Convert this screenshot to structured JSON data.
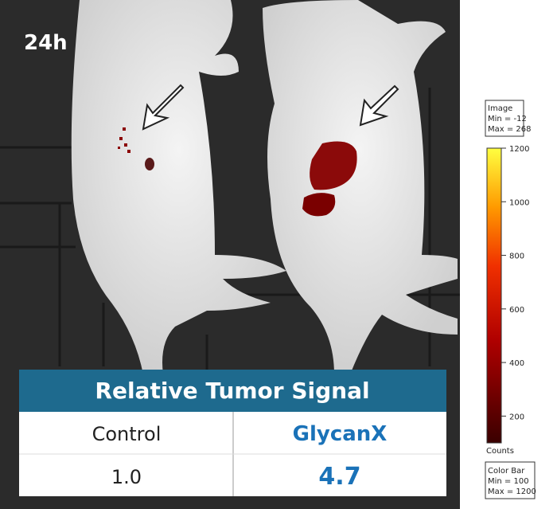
{
  "header": {
    "time": "24h"
  },
  "table": {
    "title": "Relative Tumor Signal",
    "columns": [
      "Control",
      "GlycanX"
    ],
    "rows": [
      [
        "1.0",
        "4.7"
      ]
    ]
  },
  "image_info": {
    "title": "Image",
    "lines": [
      "Min = -12",
      "Max = 268"
    ]
  },
  "colorbar": {
    "range": [
      100,
      1200
    ],
    "ticks": [
      200,
      400,
      600,
      800,
      1000,
      1200
    ],
    "unit": "Counts",
    "title": "Color Bar",
    "lines": [
      "Min = 100",
      "Max = 1200"
    ]
  }
}
